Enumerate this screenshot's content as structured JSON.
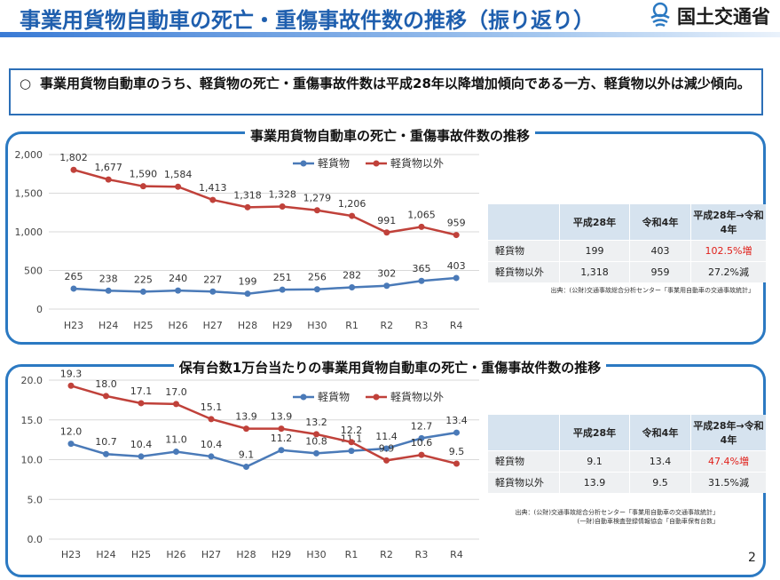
{
  "header": {
    "title": "事業用貨物自動車の死亡・重傷事故件数の推移（振り返り）",
    "logo_text": "国土交通省"
  },
  "summary": {
    "bullet": "○",
    "text": "事業用貨物自動車のうち、軽貨物の死亡・重傷事故件数は平成28年以降増加傾向である一方、軽貨物以外は減少傾向。"
  },
  "colors": {
    "series1": "#4a7ab8",
    "series2": "#c0413a",
    "accent": "#2b79c2"
  },
  "chart_data": [
    {
      "type": "line",
      "title": "事業用貨物自動車の死亡・重傷事故件数の推移",
      "categories": [
        "H23",
        "H24",
        "H25",
        "H26",
        "H27",
        "H28",
        "H29",
        "H30",
        "R1",
        "R2",
        "R3",
        "R4"
      ],
      "series": [
        {
          "name": "軽貨物",
          "values": [
            265,
            238,
            225,
            240,
            227,
            199,
            251,
            256,
            282,
            302,
            365,
            403
          ],
          "labels": [
            "265",
            "238",
            "225",
            "240",
            "227",
            "199",
            "251",
            "256",
            "282",
            "302",
            "365",
            "403"
          ]
        },
        {
          "name": "軽貨物以外",
          "values": [
            1802,
            1677,
            1590,
            1584,
            1413,
            1318,
            1328,
            1279,
            1206,
            991,
            1065,
            959
          ],
          "labels": [
            "1,802",
            "1,677",
            "1,590",
            "1,584",
            "1,413",
            "1,318",
            "1,328",
            "1,279",
            "1,206",
            "991",
            "1,065",
            "959"
          ]
        }
      ],
      "ylim": [
        0,
        2000
      ],
      "yticks": [
        "0",
        "500",
        "1,000",
        "1,500",
        "2,000"
      ],
      "legend": "top"
    },
    {
      "type": "line",
      "title": "保有台数1万台当たりの事業用貨物自動車の死亡・重傷事故件数の推移",
      "categories": [
        "H23",
        "H24",
        "H25",
        "H26",
        "H27",
        "H28",
        "H29",
        "H30",
        "R1",
        "R2",
        "R3",
        "R4"
      ],
      "series": [
        {
          "name": "軽貨物",
          "values": [
            12.0,
            10.7,
            10.4,
            11.0,
            10.4,
            9.1,
            11.2,
            10.8,
            11.1,
            11.4,
            12.7,
            13.4
          ],
          "labels": [
            "12.0",
            "10.7",
            "10.4",
            "11.0",
            "10.4",
            "9.1",
            "11.2",
            "10.8",
            "11.1",
            "11.4",
            "12.7",
            "13.4"
          ]
        },
        {
          "name": "軽貨物以外",
          "values": [
            19.3,
            18.0,
            17.1,
            17.0,
            15.1,
            13.9,
            13.9,
            13.2,
            12.2,
            9.9,
            10.6,
            9.5
          ],
          "labels": [
            "19.3",
            "18.0",
            "17.1",
            "17.0",
            "15.1",
            "13.9",
            "13.9",
            "13.2",
            "12.2",
            "9.9",
            "10.6",
            "9.5"
          ]
        }
      ],
      "ylim": [
        0,
        20
      ],
      "yticks": [
        "0.0",
        "5.0",
        "10.0",
        "15.0",
        "20.0"
      ],
      "legend": "top"
    }
  ],
  "table1": {
    "headers": [
      "",
      "平成28年",
      "令和4年",
      "平成28年→令和4年"
    ],
    "rows": [
      {
        "label": "軽貨物",
        "v1": "199",
        "v2": "403",
        "change": "102.5%増"
      },
      {
        "label": "軽貨物以外",
        "v1": "1,318",
        "v2": "959",
        "change": "27.2%減"
      }
    ],
    "source": "出典：(公財)交通事故総合分析センター「事業用自動車の交通事故統計」"
  },
  "table2": {
    "headers": [
      "",
      "平成28年",
      "令和4年",
      "平成28年→令和4年"
    ],
    "rows": [
      {
        "label": "軽貨物",
        "v1": "9.1",
        "v2": "13.4",
        "change": "47.4%増"
      },
      {
        "label": "軽貨物以外",
        "v1": "13.9",
        "v2": "9.5",
        "change": "31.5%減"
      }
    ],
    "source1": "出典：(公財)交通事故総合分析センター「事業用自動車の交通事故統計」",
    "source2": "(一財)自動車検査登録情報協会「自動車保有台数」"
  },
  "page_number": "2"
}
